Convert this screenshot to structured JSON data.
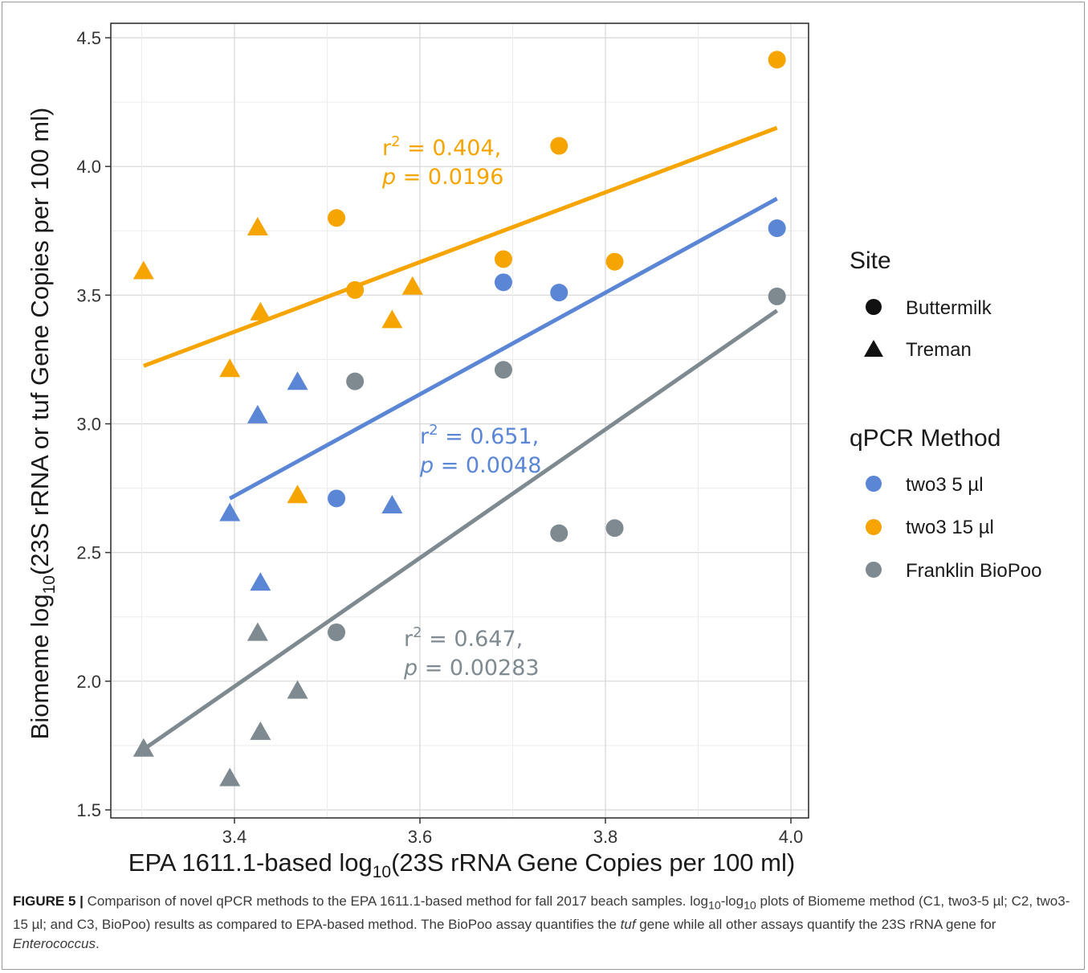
{
  "chart_data": {
    "type": "scatter",
    "xlabel": "EPA 1611.1-based log10(23S rRNA Gene Copies per 100 ml)",
    "ylabel": "Biomeme log10(23S rRNA or tuf Gene Copies per 100 ml)",
    "xlabel_parts": {
      "pre": "EPA 1611.1-based log",
      "sub": "10",
      "post": "(23S rRNA Gene Copies per 100 ml)"
    },
    "ylabel_parts": {
      "pre": "Biomeme log",
      "sub": "10",
      "post": "(23S rRNA or tuf Gene Copies per 100 ml)"
    },
    "xlim": [
      3.27,
      4.03
    ],
    "ylim": [
      1.49,
      4.55
    ],
    "xticks": [
      3.4,
      3.6,
      3.8,
      4.0
    ],
    "xtick_labels": [
      "3.4",
      "3.6",
      "3.8",
      "4.0"
    ],
    "yticks": [
      1.5,
      2.0,
      2.5,
      3.0,
      3.5,
      4.0,
      4.5
    ],
    "ytick_labels": [
      "1.5",
      "2.0",
      "2.5",
      "3.0",
      "3.5",
      "4.0",
      "4.5"
    ],
    "grid": true,
    "legend_placement": "right",
    "shape_legend": {
      "title": "Site",
      "items": [
        {
          "name": "Buttermilk",
          "shape": "circle"
        },
        {
          "name": "Treman",
          "shape": "triangle"
        }
      ]
    },
    "color_legend": {
      "title": "qPCR Method",
      "items": [
        {
          "name": "two3 5 µl",
          "color": "#5b86d6"
        },
        {
          "name": "two3 15 µl",
          "color": "#f6a400"
        },
        {
          "name": "Franklin BioPoo",
          "color": "#7f8a90"
        }
      ]
    },
    "series": [
      {
        "name": "two3 15 µl",
        "color": "#f6a400",
        "points": [
          {
            "x": 3.985,
            "y": 4.415,
            "site": "Buttermilk"
          },
          {
            "x": 3.75,
            "y": 4.08,
            "site": "Buttermilk"
          },
          {
            "x": 3.51,
            "y": 3.8,
            "site": "Buttermilk"
          },
          {
            "x": 3.69,
            "y": 3.64,
            "site": "Buttermilk"
          },
          {
            "x": 3.81,
            "y": 3.63,
            "site": "Buttermilk"
          },
          {
            "x": 3.53,
            "y": 3.52,
            "site": "Buttermilk"
          },
          {
            "x": 3.302,
            "y": 3.59,
            "site": "Treman"
          },
          {
            "x": 3.425,
            "y": 3.76,
            "site": "Treman"
          },
          {
            "x": 3.428,
            "y": 3.43,
            "site": "Treman"
          },
          {
            "x": 3.395,
            "y": 3.21,
            "site": "Treman"
          },
          {
            "x": 3.57,
            "y": 3.4,
            "site": "Treman"
          },
          {
            "x": 3.592,
            "y": 3.53,
            "site": "Treman"
          },
          {
            "x": 3.468,
            "y": 2.72,
            "site": "Treman"
          }
        ],
        "fit": {
          "x": [
            3.302,
            3.985
          ],
          "y": [
            3.225,
            4.15
          ]
        },
        "annotation": {
          "r2_prefix": "r",
          "r2_sup": "2",
          "r2_value": " = 0.404,",
          "p_label": "p",
          "p_value": " = 0.0196"
        }
      },
      {
        "name": "two3 5 µl",
        "color": "#5b86d6",
        "points": [
          {
            "x": 3.985,
            "y": 3.76,
            "site": "Buttermilk"
          },
          {
            "x": 3.69,
            "y": 3.55,
            "site": "Buttermilk"
          },
          {
            "x": 3.75,
            "y": 3.51,
            "site": "Buttermilk"
          },
          {
            "x": 3.51,
            "y": 2.71,
            "site": "Buttermilk"
          },
          {
            "x": 3.468,
            "y": 3.16,
            "site": "Treman"
          },
          {
            "x": 3.425,
            "y": 3.03,
            "site": "Treman"
          },
          {
            "x": 3.395,
            "y": 2.65,
            "site": "Treman"
          },
          {
            "x": 3.57,
            "y": 2.68,
            "site": "Treman"
          },
          {
            "x": 3.428,
            "y": 2.38,
            "site": "Treman"
          }
        ],
        "fit": {
          "x": [
            3.395,
            3.985
          ],
          "y": [
            2.71,
            3.875
          ]
        },
        "annotation": {
          "r2_prefix": "r",
          "r2_sup": "2",
          "r2_value": " = 0.651,",
          "p_label": "p",
          "p_value": " = 0.0048"
        }
      },
      {
        "name": "Franklin BioPoo",
        "color": "#7f8a90",
        "points": [
          {
            "x": 3.985,
            "y": 3.495,
            "site": "Buttermilk"
          },
          {
            "x": 3.53,
            "y": 3.165,
            "site": "Buttermilk"
          },
          {
            "x": 3.69,
            "y": 3.21,
            "site": "Buttermilk"
          },
          {
            "x": 3.75,
            "y": 2.575,
            "site": "Buttermilk"
          },
          {
            "x": 3.81,
            "y": 2.595,
            "site": "Buttermilk"
          },
          {
            "x": 3.51,
            "y": 2.19,
            "site": "Buttermilk"
          },
          {
            "x": 3.302,
            "y": 1.735,
            "site": "Treman"
          },
          {
            "x": 3.395,
            "y": 1.62,
            "site": "Treman"
          },
          {
            "x": 3.428,
            "y": 1.8,
            "site": "Treman"
          },
          {
            "x": 3.425,
            "y": 2.185,
            "site": "Treman"
          },
          {
            "x": 3.468,
            "y": 1.96,
            "site": "Treman"
          }
        ],
        "fit": {
          "x": [
            3.302,
            3.985
          ],
          "y": [
            1.735,
            3.44
          ]
        },
        "annotation": {
          "r2_prefix": "r",
          "r2_sup": "2",
          "r2_value": " = 0.647,",
          "p_label": "p",
          "p_value": " = 0.00283"
        }
      }
    ]
  },
  "caption": {
    "label": "FIGURE 5 |",
    "part1": " Comparison of novel qPCR methods to the EPA 1611.1-based method for fall 2017 beach samples. log",
    "sub1": "10",
    "part2": "-log",
    "sub2": "10",
    "part3": " plots of Biomeme method (C1, two3-5 µl; C2, two3-15 µl; and C3, BioPoo) results as compared to EPA-based method. The BioPoo assay quantifies the ",
    "italic1": "tuf",
    "part4": " gene while all other assays quantify the 23S rRNA gene for ",
    "italic2": "Enterococcus",
    "part5": "."
  }
}
